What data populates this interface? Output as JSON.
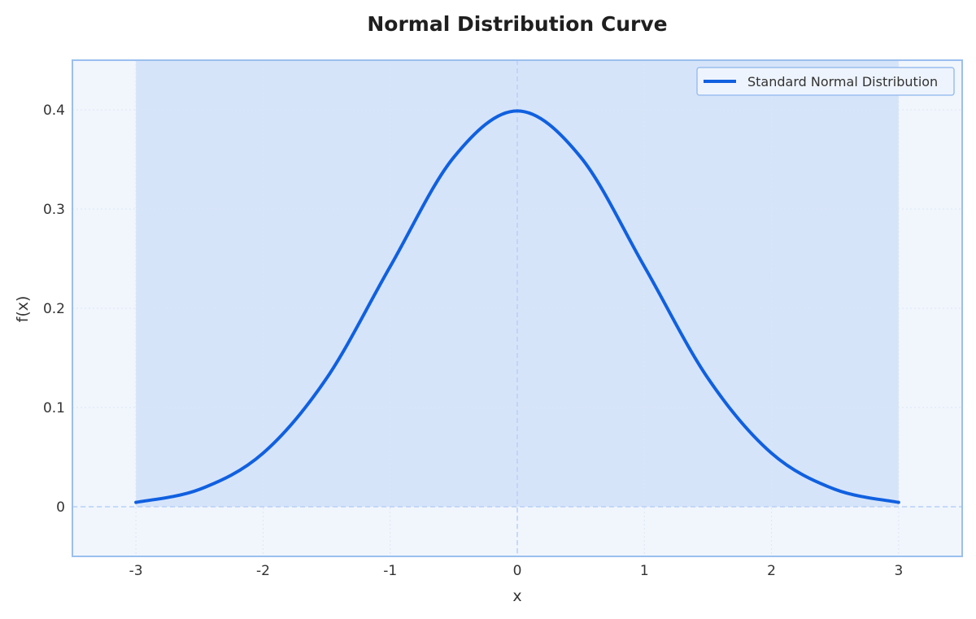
{
  "chart_data": {
    "type": "line",
    "title": "Normal Distribution Curve",
    "xlabel": "x",
    "ylabel": "f(x)",
    "xlim": [
      -3.5,
      3.5
    ],
    "ylim": [
      -0.05,
      0.45
    ],
    "xticks": [
      -3,
      -2,
      -1,
      0,
      1,
      2,
      3
    ],
    "xtick_labels": [
      "-3",
      "-2",
      "-1",
      "0",
      "1",
      "2",
      "3"
    ],
    "yticks": [
      0,
      0.1,
      0.2,
      0.3,
      0.4
    ],
    "ytick_labels": [
      "0",
      "0.1",
      "0.2",
      "0.3",
      "0.4"
    ],
    "grid": true,
    "legend_position": "top-right",
    "shaded_region": {
      "x_from": -3,
      "x_to": 3
    },
    "reference_lines": {
      "vertical_x": 0,
      "horizontal_y": 0
    },
    "series": [
      {
        "name": "Standard Normal Distribution",
        "color": "#1060e0",
        "x": [
          -3,
          -2.5,
          -2,
          -1.5,
          -1,
          -0.5,
          0,
          0.5,
          1,
          1.5,
          2,
          2.5,
          3
        ],
        "y": [
          0.0044,
          0.0175,
          0.054,
          0.1295,
          0.242,
          0.3521,
          0.3989,
          0.3521,
          0.242,
          0.1295,
          0.054,
          0.0175,
          0.0044
        ]
      }
    ],
    "colors": {
      "plot_background": "#f1f6fd",
      "shade_fill": "#d6e4fa",
      "frame": "#9bbfee",
      "reference_line": "#b8d0f5",
      "grid": "#dbe6f5"
    }
  }
}
